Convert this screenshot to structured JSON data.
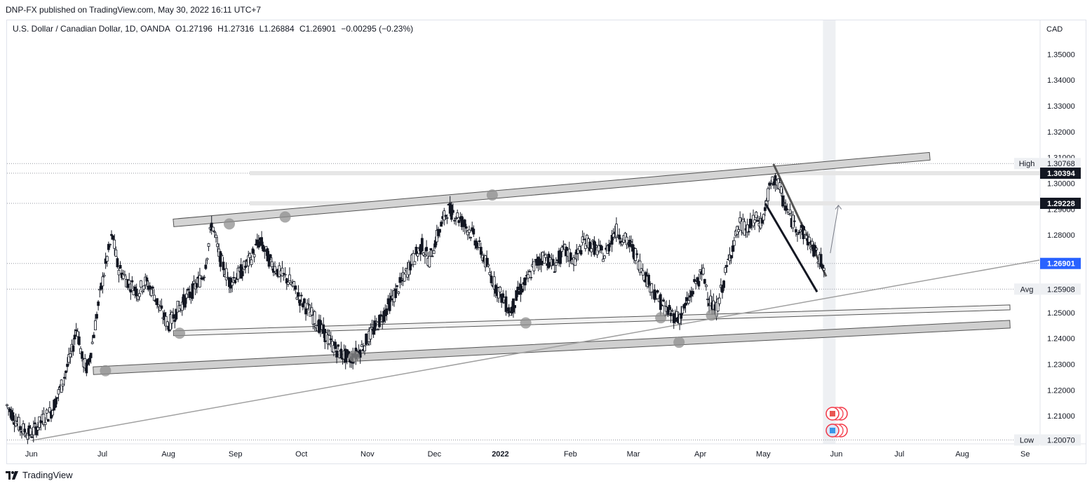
{
  "header": {
    "published_line": "DNP-FX published on TradingView.com, May 30, 2022 16:11 UTC+7"
  },
  "legend": {
    "symbol": "U.S. Dollar / Canadian Dollar, 1D, OANDA",
    "open": "O1.27196",
    "high": "H1.27316",
    "low": "L1.26884",
    "close": "C1.26901",
    "change": "−0.00295 (−0.23%)"
  },
  "footer": {
    "brand": "TradingView"
  },
  "colors": {
    "up": "#131722",
    "down": "#131722",
    "channel_fill": "#d9d9d9",
    "channel_stroke": "#555555",
    "trend_line": "#a0a0a0",
    "grid": "#e0e3eb"
  },
  "chart_data": {
    "type": "candlestick",
    "currency_label": "CAD",
    "y_axis_ticks": [
      "1.35000",
      "1.34000",
      "1.33000",
      "1.32000",
      "1.31000",
      "1.30000",
      "1.29000",
      "1.28000",
      "1.27000",
      "1.26000",
      "1.25000",
      "1.24000",
      "1.23000",
      "1.22000",
      "1.21000"
    ],
    "y_tick_values": [
      1.35,
      1.34,
      1.33,
      1.32,
      1.31,
      1.3,
      1.29,
      1.28,
      1.27,
      1.26,
      1.25,
      1.24,
      1.23,
      1.22,
      1.21
    ],
    "ylim": [
      1.1992,
      1.3631
    ],
    "x_axis_labels": [
      "Jun",
      "Jul",
      "Aug",
      "Sep",
      "Oct",
      "Nov",
      "Dec",
      "2022",
      "Feb",
      "Mar",
      "Apr",
      "May",
      "Jun",
      "Jul",
      "Aug",
      "Se"
    ],
    "x_label_days": [
      0,
      70,
      135,
      201,
      266,
      331,
      397,
      462,
      531,
      593,
      659,
      721,
      793,
      855,
      917,
      979
    ],
    "xlim": [
      -24,
      993
    ],
    "price_labels": [
      {
        "name": "High",
        "value": "1.30768",
        "y": 1.30768,
        "style": "light"
      },
      {
        "name": "",
        "value": "1.30394",
        "y": 1.30394,
        "style": "dark"
      },
      {
        "name": "",
        "value": "1.29228",
        "y": 1.29228,
        "style": "dark"
      },
      {
        "name": "",
        "value": "1.26901",
        "y": 1.26901,
        "style": "blue"
      },
      {
        "name": "Avg",
        "value": "1.25908",
        "y": 1.25908,
        "style": "light"
      },
      {
        "name": "Low",
        "value": "1.20070",
        "y": 1.2007,
        "style": "light"
      }
    ],
    "series": [
      {
        "name": "",
        "points": [
          [
            -24,
            1.214
          ],
          [
            -10,
            1.205
          ],
          [
            0,
            1.203
          ],
          [
            10,
            1.208
          ],
          [
            20,
            1.212
          ],
          [
            30,
            1.222
          ],
          [
            40,
            1.235
          ],
          [
            45,
            1.245
          ],
          [
            50,
            1.232
          ],
          [
            55,
            1.228
          ],
          [
            60,
            1.238
          ],
          [
            68,
            1.258
          ],
          [
            75,
            1.272
          ],
          [
            80,
            1.28
          ],
          [
            85,
            1.268
          ],
          [
            95,
            1.262
          ],
          [
            105,
            1.258
          ],
          [
            112,
            1.262
          ],
          [
            120,
            1.258
          ],
          [
            128,
            1.25
          ],
          [
            135,
            1.245
          ],
          [
            145,
            1.252
          ],
          [
            158,
            1.258
          ],
          [
            170,
            1.265
          ],
          [
            178,
            1.285
          ],
          [
            185,
            1.272
          ],
          [
            195,
            1.262
          ],
          [
            205,
            1.265
          ],
          [
            215,
            1.27
          ],
          [
            225,
            1.278
          ],
          [
            235,
            1.27
          ],
          [
            245,
            1.265
          ],
          [
            255,
            1.262
          ],
          [
            265,
            1.255
          ],
          [
            275,
            1.25
          ],
          [
            285,
            1.244
          ],
          [
            295,
            1.238
          ],
          [
            305,
            1.234
          ],
          [
            315,
            1.232
          ],
          [
            325,
            1.236
          ],
          [
            335,
            1.242
          ],
          [
            345,
            1.248
          ],
          [
            355,
            1.255
          ],
          [
            365,
            1.262
          ],
          [
            375,
            1.27
          ],
          [
            385,
            1.276
          ],
          [
            392,
            1.27
          ],
          [
            400,
            1.28
          ],
          [
            410,
            1.29
          ],
          [
            418,
            1.288
          ],
          [
            425,
            1.285
          ],
          [
            435,
            1.28
          ],
          [
            445,
            1.272
          ],
          [
            455,
            1.262
          ],
          [
            465,
            1.255
          ],
          [
            472,
            1.25
          ],
          [
            480,
            1.258
          ],
          [
            488,
            1.262
          ],
          [
            495,
            1.268
          ],
          [
            505,
            1.272
          ],
          [
            515,
            1.268
          ],
          [
            525,
            1.274
          ],
          [
            535,
            1.27
          ],
          [
            545,
            1.278
          ],
          [
            555,
            1.275
          ],
          [
            565,
            1.272
          ],
          [
            575,
            1.282
          ],
          [
            585,
            1.278
          ],
          [
            592,
            1.275
          ],
          [
            600,
            1.268
          ],
          [
            608,
            1.262
          ],
          [
            618,
            1.255
          ],
          [
            628,
            1.25
          ],
          [
            638,
            1.248
          ],
          [
            648,
            1.255
          ],
          [
            655,
            1.262
          ],
          [
            662,
            1.265
          ],
          [
            668,
            1.255
          ],
          [
            674,
            1.25
          ],
          [
            682,
            1.262
          ],
          [
            690,
            1.275
          ],
          [
            698,
            1.284
          ],
          [
            706,
            1.282
          ],
          [
            713,
            1.286
          ],
          [
            720,
            1.285
          ],
          [
            727,
            1.298
          ],
          [
            734,
            1.302
          ],
          [
            740,
            1.294
          ],
          [
            746,
            1.288
          ],
          [
            752,
            1.284
          ],
          [
            758,
            1.282
          ],
          [
            764,
            1.279
          ],
          [
            770,
            1.275
          ],
          [
            776,
            1.27
          ],
          [
            782,
            1.269
          ]
        ]
      }
    ]
  }
}
